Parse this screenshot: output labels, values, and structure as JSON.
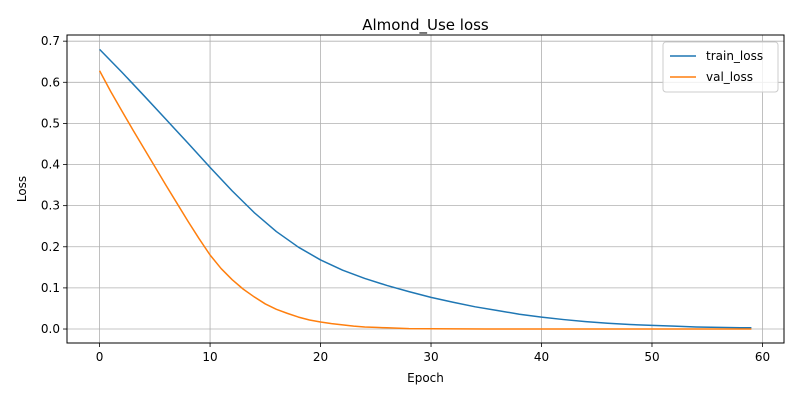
{
  "chart_data": {
    "type": "line",
    "title": "Almond_Use loss",
    "xlabel": "Epoch",
    "ylabel": "Loss",
    "xlim": [
      -2.95,
      61.95
    ],
    "ylim": [
      -0.034,
      0.715
    ],
    "xticks": [
      0,
      10,
      20,
      30,
      40,
      50,
      60
    ],
    "yticks": [
      0.0,
      0.1,
      0.2,
      0.3,
      0.4,
      0.5,
      0.6,
      0.7
    ],
    "grid": true,
    "legend_position": "top-right",
    "series": [
      {
        "name": "train_loss",
        "color": "#1f77b4",
        "x": [
          0,
          2,
          4,
          6,
          8,
          10,
          12,
          14,
          16,
          18,
          20,
          22,
          24,
          26,
          28,
          30,
          32,
          34,
          36,
          38,
          40,
          42,
          44,
          46,
          48,
          50,
          52,
          54,
          56,
          58,
          59
        ],
        "y": [
          0.68,
          0.625,
          0.568,
          0.51,
          0.452,
          0.393,
          0.336,
          0.283,
          0.237,
          0.199,
          0.168,
          0.143,
          0.123,
          0.106,
          0.091,
          0.077,
          0.065,
          0.054,
          0.045,
          0.036,
          0.029,
          0.023,
          0.018,
          0.014,
          0.011,
          0.009,
          0.007,
          0.005,
          0.004,
          0.003,
          0.003
        ]
      },
      {
        "name": "val_loss",
        "color": "#ff7f0e",
        "x": [
          0,
          1,
          2,
          3,
          4,
          5,
          6,
          7,
          8,
          9,
          10,
          11,
          12,
          13,
          14,
          15,
          16,
          17,
          18,
          19,
          20,
          21,
          22,
          23,
          24,
          25,
          26,
          28,
          30,
          35,
          40,
          45,
          50,
          55,
          59
        ],
        "y": [
          0.628,
          0.578,
          0.531,
          0.485,
          0.44,
          0.395,
          0.35,
          0.306,
          0.262,
          0.22,
          0.18,
          0.147,
          0.12,
          0.097,
          0.078,
          0.061,
          0.048,
          0.038,
          0.029,
          0.022,
          0.017,
          0.013,
          0.01,
          0.007,
          0.005,
          0.004,
          0.003,
          0.001,
          0.0005,
          0.0002,
          0.0001,
          0.0,
          0.0,
          0.0,
          0.0
        ]
      }
    ]
  }
}
